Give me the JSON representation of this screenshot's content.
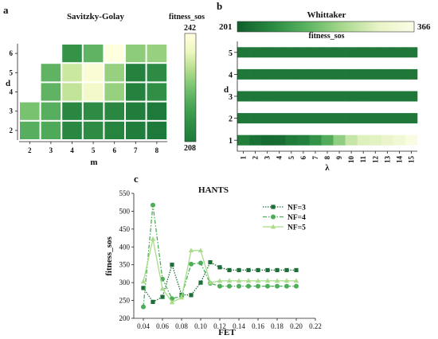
{
  "colors": {
    "sg_scale": [
      "#1e7a3a",
      "#2f8d44",
      "#48a656",
      "#78c270",
      "#b3de8c",
      "#eef7c0",
      "#ffffe0"
    ],
    "wh_scale": [
      "#0f5f2c",
      "#2a8a42",
      "#5db562",
      "#a9d98f",
      "#e8f4c6",
      "#fbfde6"
    ],
    "hants": {
      "NF=3": "#1f6e3a",
      "NF=4": "#4cae57",
      "NF=5": "#a8dc8a"
    }
  },
  "panels": {
    "a": {
      "label": "a",
      "title": "Savitzky-Golay",
      "colorbar": {
        "title": "fitness_sos",
        "min_label": "208",
        "max_label": "242"
      }
    },
    "b": {
      "label": "b",
      "title": "Whittaker",
      "colorbar": {
        "title": "fitness_sos",
        "min_label": "201",
        "max_label": "366"
      }
    },
    "c": {
      "label": "c",
      "title": "HANTS"
    }
  },
  "chart_data": [
    {
      "panel": "a",
      "type": "heatmap",
      "title": "Savitzky-Golay",
      "xlabel": "m",
      "ylabel": "d",
      "x": [
        2,
        3,
        4,
        5,
        6,
        7,
        8
      ],
      "y": [
        2,
        3,
        4,
        5,
        6
      ],
      "zlim": [
        208,
        242
      ],
      "z": [
        [
          221,
          220,
          212,
          213,
          211,
          209,
          208
        ],
        [
          225,
          221,
          212,
          213,
          212,
          209,
          208
        ],
        [
          null,
          222,
          232,
          238,
          228,
          210,
          214
        ],
        [
          null,
          222,
          233,
          240,
          228,
          210,
          213
        ],
        [
          null,
          null,
          215,
          222,
          242,
          227,
          228
        ]
      ]
    },
    {
      "panel": "b",
      "type": "heatmap",
      "title": "Whittaker",
      "xlabel": "λ",
      "ylabel": "d",
      "x": [
        1,
        2,
        3,
        4,
        5,
        6,
        7,
        8,
        9,
        10,
        11,
        12,
        13,
        14,
        15
      ],
      "y": [
        1,
        2,
        3,
        4,
        5
      ],
      "zlim": [
        201,
        366
      ],
      "z": [
        [
          225,
          215,
          210,
          212,
          222,
          226,
          240,
          260,
          290,
          315,
          328,
          330,
          338,
          348,
          362
        ],
        [
          220,
          220,
          220,
          220,
          220,
          220,
          220,
          220,
          220,
          220,
          220,
          220,
          220,
          220,
          220
        ],
        [
          220,
          220,
          220,
          220,
          220,
          220,
          220,
          220,
          220,
          220,
          220,
          220,
          220,
          220,
          220
        ],
        [
          220,
          220,
          220,
          220,
          220,
          220,
          220,
          220,
          220,
          220,
          220,
          220,
          220,
          220,
          220
        ],
        [
          220,
          220,
          220,
          220,
          220,
          220,
          220,
          220,
          220,
          220,
          220,
          220,
          220,
          220,
          220
        ]
      ]
    },
    {
      "panel": "c",
      "type": "line",
      "title": "HANTS",
      "xlabel": "FET",
      "ylabel": "fitness_sos",
      "xlim": [
        0.03,
        0.22
      ],
      "ylim": [
        200,
        550
      ],
      "xticks": [
        "0.04",
        "0.06",
        "0.08",
        "0.10",
        "0.12",
        "0.14",
        "0.16",
        "0.18",
        "0.20",
        "0.22"
      ],
      "yticks": [
        "200",
        "250",
        "300",
        "350",
        "400",
        "450",
        "500",
        "550"
      ],
      "legend_position": "upper-right",
      "x": [
        0.04,
        0.05,
        0.06,
        0.07,
        0.08,
        0.09,
        0.1,
        0.11,
        0.12,
        0.13,
        0.14,
        0.15,
        0.16,
        0.17,
        0.18,
        0.19,
        0.2
      ],
      "series": [
        {
          "name": "NF=3",
          "marker": "square",
          "dash": "dotted",
          "values": [
            285,
            246,
            260,
            350,
            266,
            265,
            300,
            357,
            343,
            335,
            335,
            335,
            335,
            335,
            335,
            335,
            335
          ]
        },
        {
          "name": "NF=4",
          "marker": "circle",
          "dash": "dashdot",
          "values": [
            232,
            517,
            310,
            255,
            262,
            352,
            355,
            298,
            290,
            290,
            290,
            290,
            290,
            290,
            290,
            290,
            290
          ]
        },
        {
          "name": "NF=5",
          "marker": "triangle",
          "dash": "solid",
          "values": [
            303,
            422,
            283,
            245,
            258,
            390,
            390,
            300,
            305,
            305,
            305,
            305,
            305,
            305,
            305,
            305,
            305
          ]
        }
      ]
    }
  ]
}
